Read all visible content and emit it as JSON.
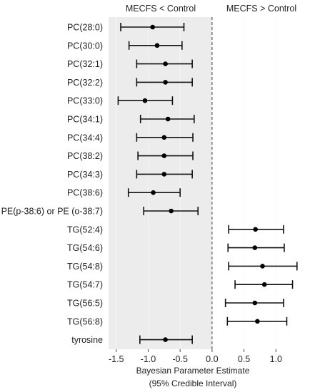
{
  "chart_data": {
    "type": "forest",
    "headers": {
      "left": "MECFS < Control",
      "right": "MECFS > Control"
    },
    "xlabel": {
      "line1": "Bayesian Parameter  Estimate",
      "line2": "(95% Credible Interval)"
    },
    "xlim": [
      -1.62,
      1.5
    ],
    "xticks": [
      -1.5,
      -1.0,
      -0.5,
      0.0,
      0.5,
      1.0
    ],
    "xtick_labels": [
      "-1.5",
      "-1.0",
      "-0.5",
      "0.0",
      "0.5",
      "1.0"
    ],
    "reference_line": 0.0,
    "shade_negative_side": true,
    "rows": [
      {
        "label": "PC(28:0)",
        "estimate": -0.93,
        "lower": -1.43,
        "upper": -0.44
      },
      {
        "label": "PC(30:0)",
        "estimate": -0.86,
        "lower": -1.3,
        "upper": -0.47
      },
      {
        "label": "PC(32:1)",
        "estimate": -0.73,
        "lower": -1.18,
        "upper": -0.31
      },
      {
        "label": "PC(32:2)",
        "estimate": -0.73,
        "lower": -1.18,
        "upper": -0.31
      },
      {
        "label": "PC(33:0)",
        "estimate": -1.05,
        "lower": -1.47,
        "upper": -0.62
      },
      {
        "label": "PC(34:1)",
        "estimate": -0.69,
        "lower": -1.12,
        "upper": -0.28
      },
      {
        "label": "PC(34:4)",
        "estimate": -0.75,
        "lower": -1.18,
        "upper": -0.3
      },
      {
        "label": "PC(38:2)",
        "estimate": -0.75,
        "lower": -1.16,
        "upper": -0.3
      },
      {
        "label": "PC(34:3)",
        "estimate": -0.75,
        "lower": -1.18,
        "upper": -0.31
      },
      {
        "label": "PC(38:6)",
        "estimate": -0.92,
        "lower": -1.31,
        "upper": -0.5
      },
      {
        "label": "PE(p-38:6) or PE (o-38:7)",
        "estimate": -0.64,
        "lower": -1.07,
        "upper": -0.22
      },
      {
        "label": "TG(52:4)",
        "estimate": 0.68,
        "lower": 0.26,
        "upper": 1.12
      },
      {
        "label": "TG(54:6)",
        "estimate": 0.67,
        "lower": 0.25,
        "upper": 1.13
      },
      {
        "label": "TG(54:8)",
        "estimate": 0.79,
        "lower": 0.26,
        "upper": 1.33
      },
      {
        "label": "TG(54:7)",
        "estimate": 0.82,
        "lower": 0.36,
        "upper": 1.26
      },
      {
        "label": "TG(56:5)",
        "estimate": 0.67,
        "lower": 0.21,
        "upper": 1.12
      },
      {
        "label": "TG(56:8)",
        "estimate": 0.71,
        "lower": 0.24,
        "upper": 1.17
      },
      {
        "label": "tyrosine",
        "estimate": -0.73,
        "lower": -1.13,
        "upper": -0.31
      }
    ]
  }
}
